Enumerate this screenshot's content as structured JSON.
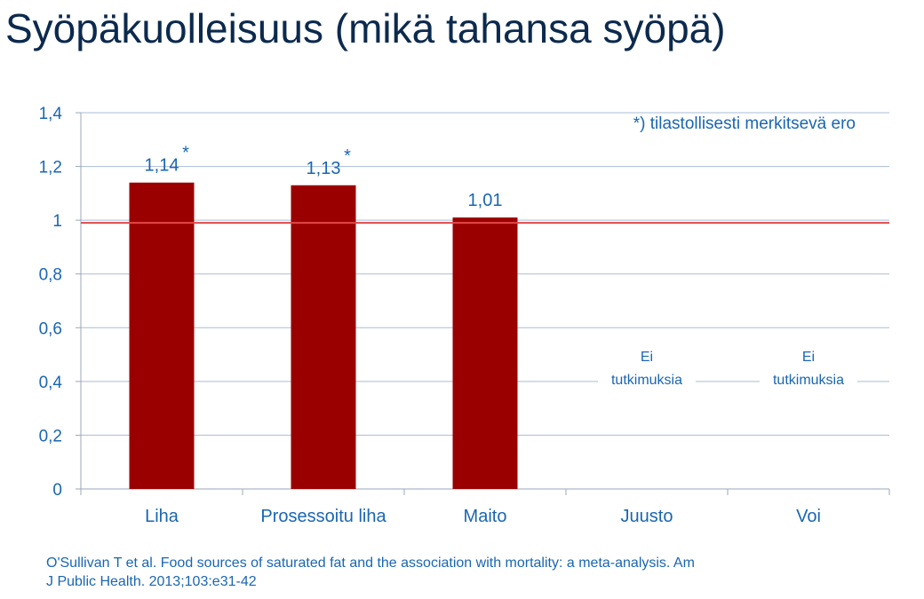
{
  "slide": {
    "title": "Syöpäkuolleisuus (mikä tahansa syöpä)",
    "citation_line1": "O'Sullivan T et al. Food sources of saturated fat and the association with mortality: a meta-analysis. Am",
    "citation_line2": "J Public Health. 2013;103:e31-42"
  },
  "chart_data": {
    "type": "bar",
    "title": "",
    "xlabel": "",
    "ylabel": "",
    "categories": [
      "Liha",
      "Prosessoitu liha",
      "Maito",
      "Juusto",
      "Voi"
    ],
    "values": [
      1.14,
      1.13,
      1.01,
      null,
      null
    ],
    "data_labels": [
      "1,14",
      "1,13",
      "1,01",
      "",
      ""
    ],
    "significance_markers": [
      "*",
      "*",
      "",
      "",
      ""
    ],
    "no_data_labels": [
      "",
      "",
      "",
      "Ei tutkimuksia",
      "Ei tutkimuksia"
    ],
    "ylim": [
      0,
      1.4
    ],
    "yticks": [
      0,
      0.2,
      0.4,
      0.6,
      0.8,
      1,
      1.2,
      1.4
    ],
    "ytick_labels": [
      "0",
      "0,2",
      "0,4",
      "0,6",
      "0,8",
      "1",
      "1,2",
      "1,4"
    ],
    "reference_line": 1,
    "grid": true,
    "annotation": "*) tilastollisesti merkitsevä ero",
    "colors": {
      "bar": "#9b0000",
      "reference_line": "#e04848",
      "grid": "#a9bdd8",
      "axis": "#9aa7b8",
      "text": "#1a66b1",
      "category_text": "#1a66b1"
    }
  }
}
